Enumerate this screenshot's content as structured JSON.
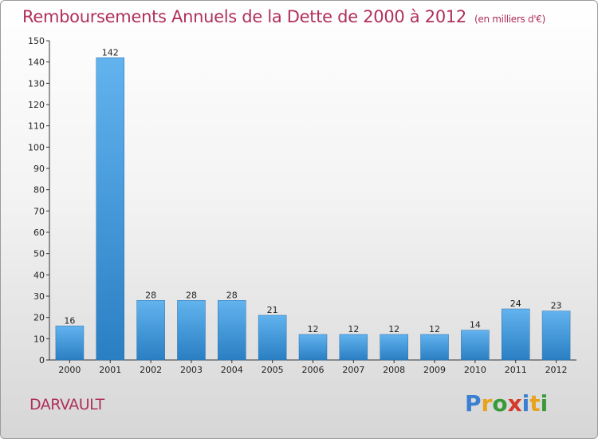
{
  "header": {
    "title": "Remboursements Annuels de la Dette de 2000 à 2012",
    "subtitle": "(en milliers d'€)"
  },
  "footer": {
    "commune": "DARVAULT",
    "logo_letters": [
      "P",
      "r",
      "o",
      "x",
      "i",
      "t",
      "i"
    ]
  },
  "colors": {
    "title": "#b0305a",
    "bar_top": "#62b3ee",
    "bar_bottom": "#2a7fc3",
    "logo": [
      "#3a7fd1",
      "#e8a21c",
      "#3a9a3a",
      "#d43a2a",
      "#3a7fd1",
      "#e8a21c",
      "#3a9a3a"
    ]
  },
  "chart_data": {
    "type": "bar",
    "title": "Remboursements Annuels de la Dette de 2000 à 2012",
    "subtitle": "(en milliers d'€)",
    "categories": [
      "2000",
      "2001",
      "2002",
      "2003",
      "2004",
      "2005",
      "2006",
      "2007",
      "2008",
      "2009",
      "2010",
      "2011",
      "2012"
    ],
    "values": [
      16,
      142,
      28,
      28,
      28,
      21,
      12,
      12,
      12,
      12,
      14,
      24,
      23
    ],
    "ylim": [
      0,
      150
    ],
    "yticks": [
      0,
      10,
      20,
      30,
      40,
      50,
      60,
      70,
      80,
      90,
      100,
      110,
      120,
      130,
      140,
      150
    ],
    "grid": false,
    "legend": "none"
  }
}
